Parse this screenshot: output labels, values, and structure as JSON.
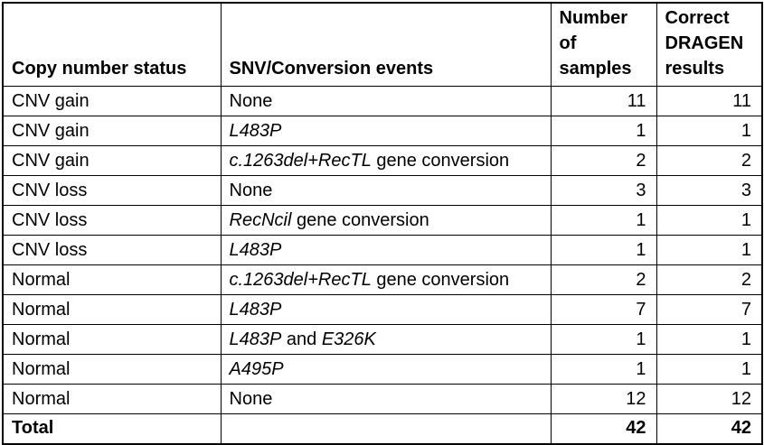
{
  "table": {
    "headers": [
      "Copy number status",
      "SNV/Conversion events",
      "Number of samples",
      "Correct DRAGEN results"
    ],
    "rows": [
      {
        "status": "CNV gain",
        "events": [
          {
            "text": "None",
            "italic": false
          }
        ],
        "samples": "11",
        "results": "11",
        "bold": false
      },
      {
        "status": "CNV gain",
        "events": [
          {
            "text": "L483P",
            "italic": true
          }
        ],
        "samples": "1",
        "results": "1",
        "bold": false
      },
      {
        "status": "CNV gain",
        "events": [
          {
            "text": "c.1263del+RecTL",
            "italic": true
          },
          {
            "text": " gene conversion",
            "italic": false
          }
        ],
        "samples": "2",
        "results": "2",
        "bold": false
      },
      {
        "status": "CNV loss",
        "events": [
          {
            "text": "None",
            "italic": false
          }
        ],
        "samples": "3",
        "results": "3",
        "bold": false
      },
      {
        "status": "CNV loss",
        "events": [
          {
            "text": "RecNcil",
            "italic": true
          },
          {
            "text": " gene conversion",
            "italic": false
          }
        ],
        "samples": "1",
        "results": "1",
        "bold": false
      },
      {
        "status": "CNV loss",
        "events": [
          {
            "text": "L483P",
            "italic": true
          }
        ],
        "samples": "1",
        "results": "1",
        "bold": false
      },
      {
        "status": "Normal",
        "events": [
          {
            "text": "c.1263del+RecTL",
            "italic": true
          },
          {
            "text": " gene conversion",
            "italic": false
          }
        ],
        "samples": "2",
        "results": "2",
        "bold": false
      },
      {
        "status": "Normal",
        "events": [
          {
            "text": "L483P",
            "italic": true
          }
        ],
        "samples": "7",
        "results": "7",
        "bold": false
      },
      {
        "status": "Normal",
        "events": [
          {
            "text": "L483P",
            "italic": true
          },
          {
            "text": " and ",
            "italic": false
          },
          {
            "text": "E326K",
            "italic": true
          }
        ],
        "samples": "1",
        "results": "1",
        "bold": false
      },
      {
        "status": "Normal",
        "events": [
          {
            "text": "A495P",
            "italic": true
          }
        ],
        "samples": "1",
        "results": "1",
        "bold": false
      },
      {
        "status": "Normal",
        "events": [
          {
            "text": "None",
            "italic": false
          }
        ],
        "samples": "12",
        "results": "12",
        "bold": false
      },
      {
        "status": "Total",
        "events": [],
        "samples": "42",
        "results": "42",
        "bold": true
      }
    ],
    "totals": {
      "label": "Total",
      "samples": 42,
      "results": 42
    },
    "colors": {
      "border": "#000000",
      "text": "#000000",
      "background": "#ffffff"
    }
  }
}
